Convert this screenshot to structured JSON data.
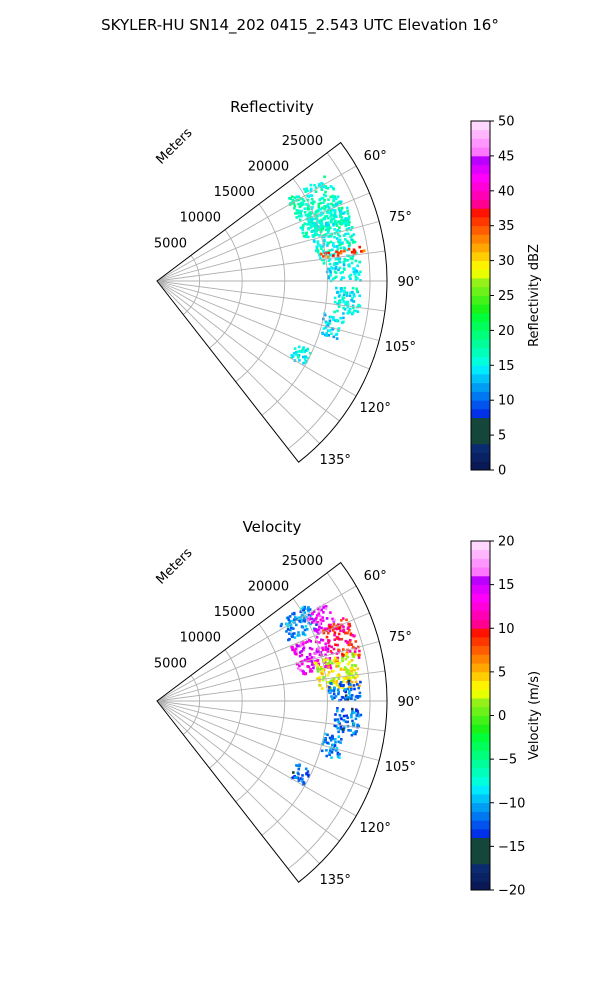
{
  "title": "SKYLER-HU  SN14_202  0415_2.543 UTC Elevation 16°",
  "chart_data": [
    {
      "type": "heatmap",
      "subtype": "polar-sector",
      "title": "Reflectivity",
      "radial_label": "Meters",
      "radial_ticks": [
        "5000",
        "10000",
        "15000",
        "20000",
        "25000"
      ],
      "radial_max": 27000,
      "theta_ticks": [
        "60°",
        "75°",
        "90°",
        "105°",
        "120°",
        "135°"
      ],
      "theta_range": [
        53,
        142
      ],
      "grid": true,
      "colorbar": {
        "label": "Reflectivity dBZ",
        "min": 0,
        "max": 50,
        "ticks": [
          "0",
          "5",
          "10",
          "15",
          "20",
          "25",
          "30",
          "35",
          "40",
          "45",
          "50"
        ]
      },
      "echo_regions": [
        {
          "theta": [
            58,
            74
          ],
          "range": [
            18000,
            23500
          ],
          "value": 17
        },
        {
          "theta": [
            66,
            84
          ],
          "range": [
            19000,
            24000
          ],
          "value": 16
        },
        {
          "theta": [
            84,
            90
          ],
          "range": [
            20000,
            24000
          ],
          "value": 15
        },
        {
          "theta": [
            92,
            100
          ],
          "range": [
            21000,
            24000
          ],
          "value": 15
        },
        {
          "theta": [
            101,
            108
          ],
          "range": [
            20000,
            22500
          ],
          "value": 14
        },
        {
          "theta": [
            114,
            120
          ],
          "range": [
            18000,
            20000
          ],
          "value": 15
        },
        {
          "theta": [
            80.5,
            82
          ],
          "range": [
            19000,
            25000
          ],
          "value": 35
        }
      ]
    },
    {
      "type": "heatmap",
      "subtype": "polar-sector",
      "title": "Velocity",
      "radial_label": "Meters",
      "radial_ticks": [
        "5000",
        "10000",
        "15000",
        "20000",
        "25000"
      ],
      "radial_max": 27000,
      "theta_ticks": [
        "60°",
        "75°",
        "90°",
        "105°",
        "120°",
        "135°"
      ],
      "theta_range": [
        53,
        142
      ],
      "grid": true,
      "colorbar": {
        "label": "Velocity (m/s)",
        "min": -20,
        "max": 20,
        "ticks": [
          "−20",
          "−15",
          "−10",
          "−5",
          "0",
          "5",
          "10",
          "15",
          "20"
        ]
      },
      "echo_regions": [
        {
          "theta": [
            57,
            66
          ],
          "range": [
            17000,
            21000
          ],
          "value": -11
        },
        {
          "theta": [
            60,
            68
          ],
          "range": [
            20000,
            23000
          ],
          "value": 15
        },
        {
          "theta": [
            66,
            78
          ],
          "range": [
            21000,
            24500
          ],
          "value": 10
        },
        {
          "theta": [
            68,
            80
          ],
          "range": [
            17000,
            21000
          ],
          "value": 14
        },
        {
          "theta": [
            76,
            86
          ],
          "range": [
            19000,
            24000
          ],
          "value": 3
        },
        {
          "theta": [
            84,
            90
          ],
          "range": [
            20000,
            24000
          ],
          "value": -12
        },
        {
          "theta": [
            92,
            100
          ],
          "range": [
            21000,
            24000
          ],
          "value": -12
        },
        {
          "theta": [
            101,
            108
          ],
          "range": [
            20000,
            22500
          ],
          "value": -11
        },
        {
          "theta": [
            114,
            120
          ],
          "range": [
            18000,
            20000
          ],
          "value": -12
        }
      ]
    }
  ]
}
